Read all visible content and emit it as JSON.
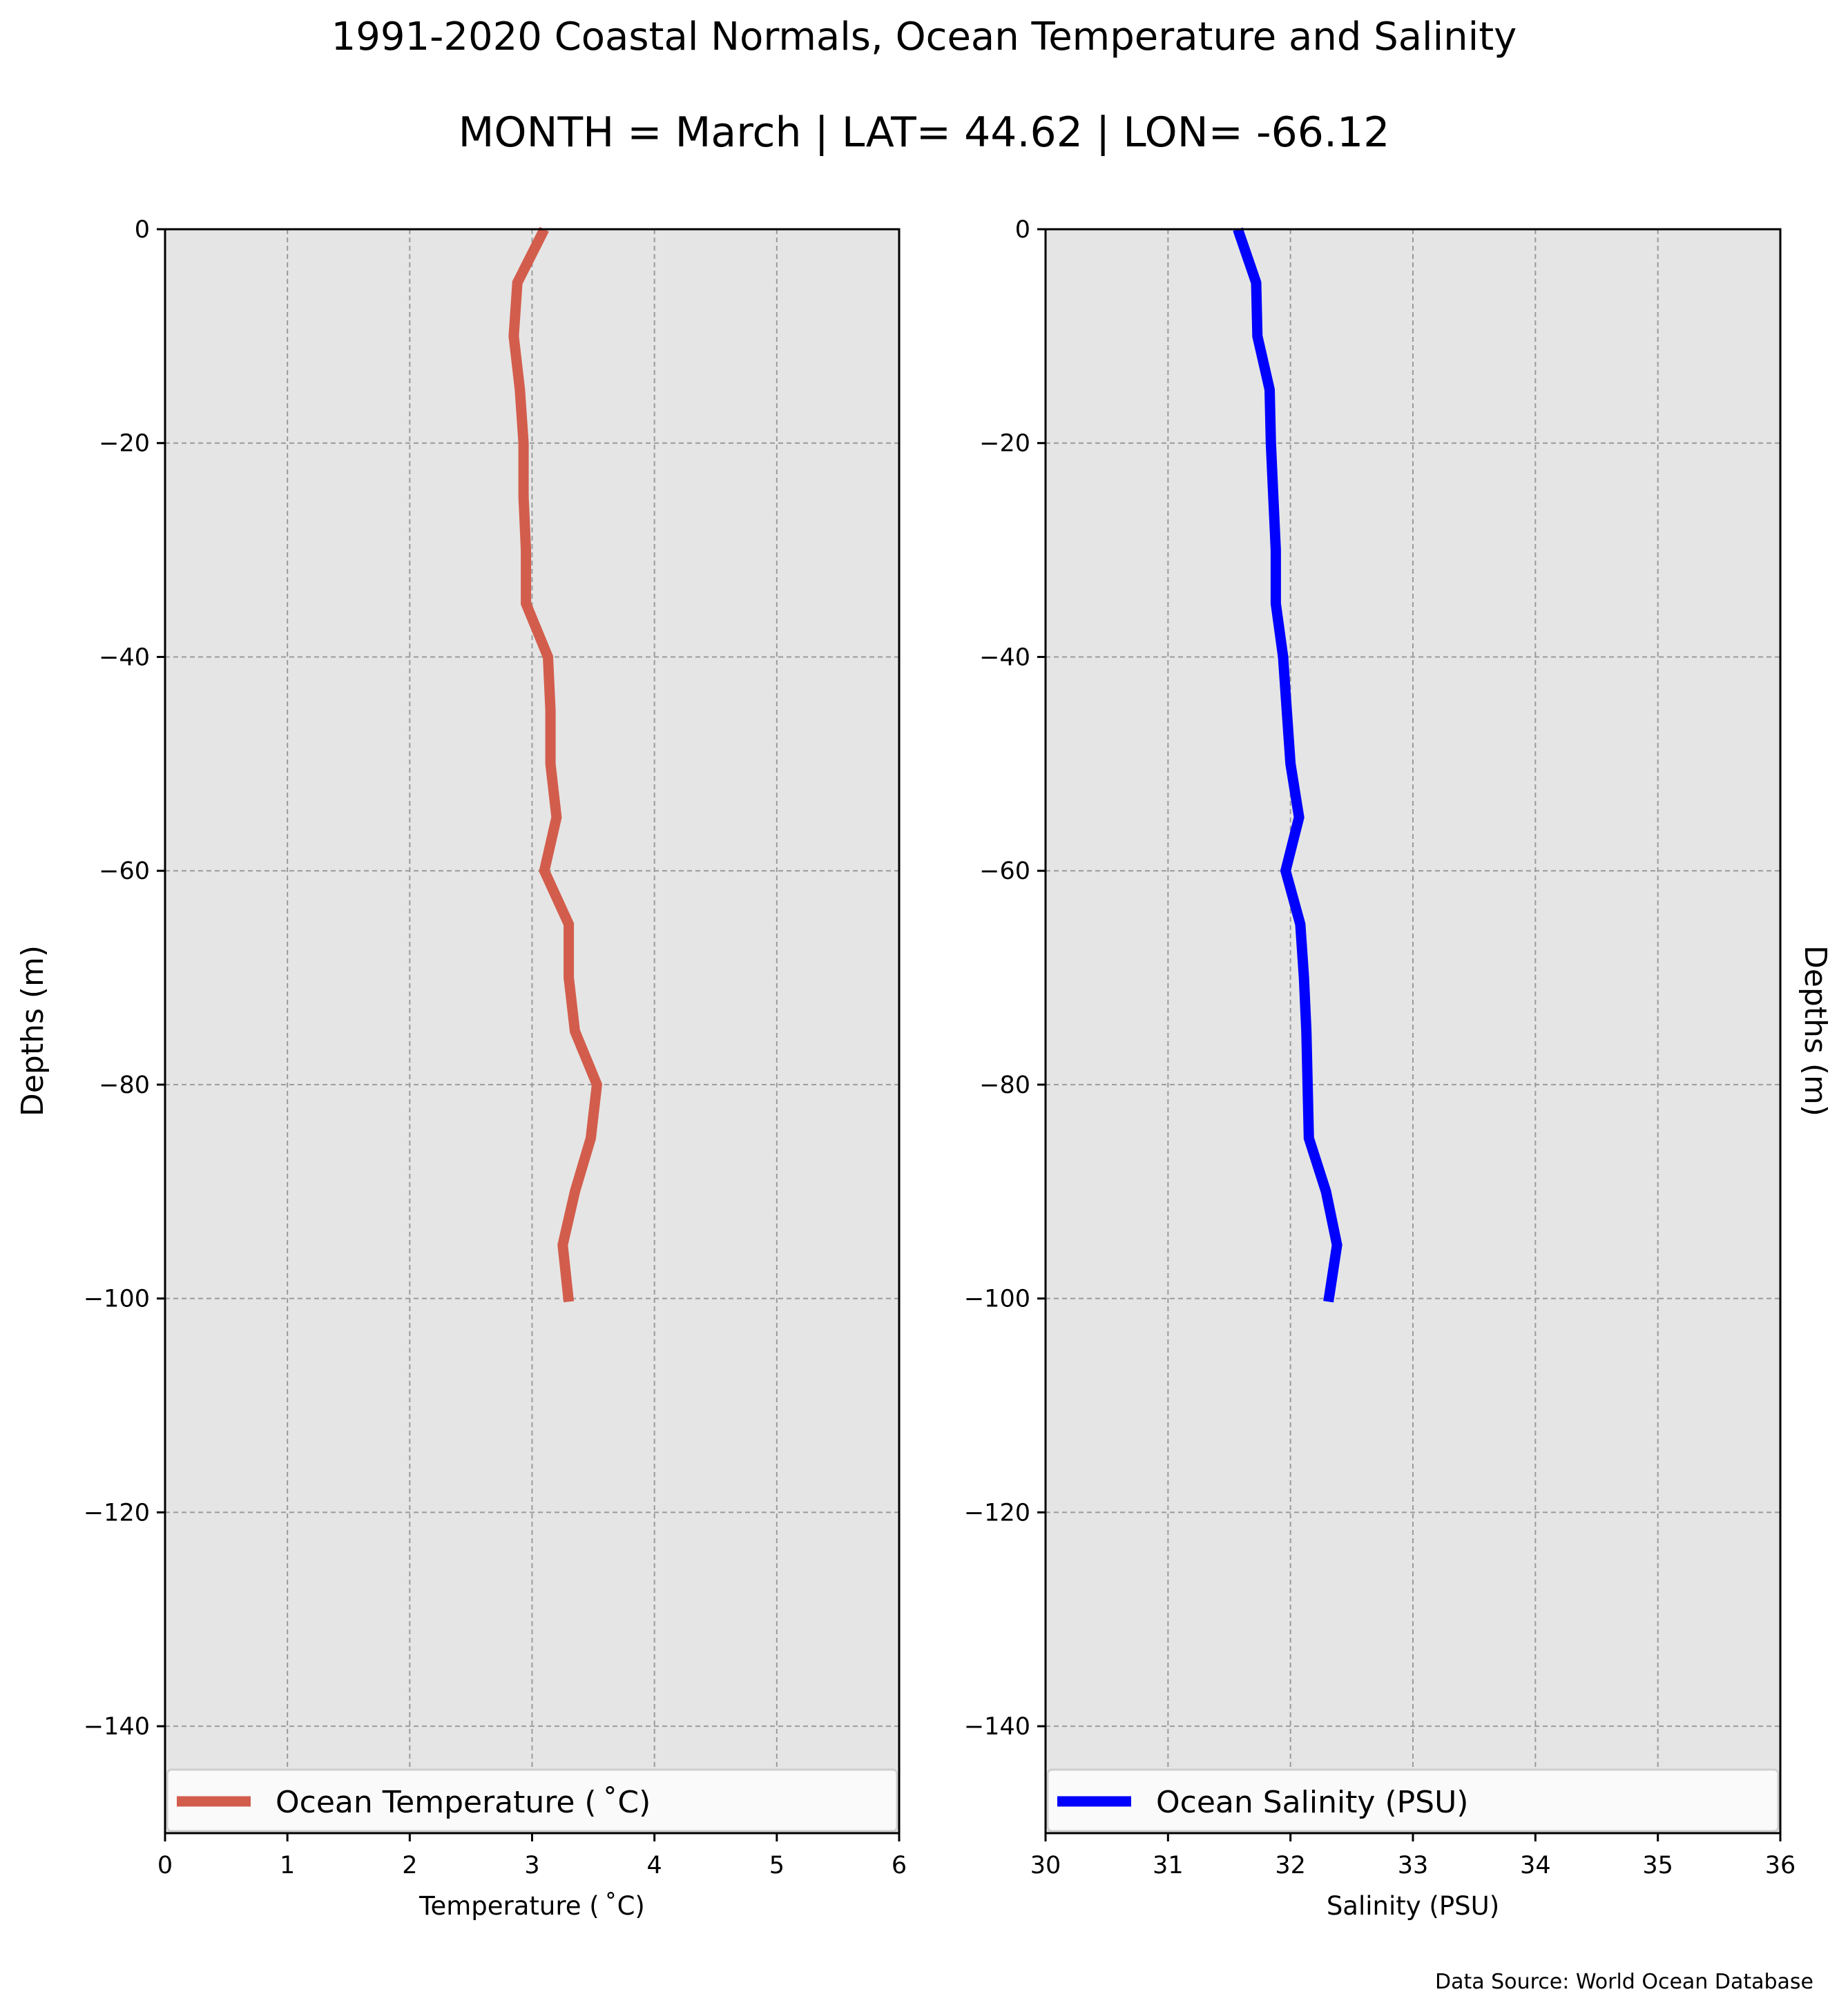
{
  "title": "1991-2020 Coastal Normals, Ocean Temperature and Salinity",
  "subtitle": "MONTH = March | LAT= 44.62 | LON= -66.12",
  "footer": "Data Source: World Ocean Database",
  "chart_data": [
    {
      "type": "line",
      "orientation": "vertical-profile",
      "xlabel": "Temperature ($^\\circ$C)",
      "xlabel_display": "Temperature ( ˚C)",
      "ylabel": "Depths (m)",
      "ylabel_side": "left",
      "xlim": [
        0,
        6
      ],
      "ylim": [
        -150,
        0
      ],
      "xticks": [
        0,
        1,
        2,
        3,
        4,
        5,
        6
      ],
      "yticks": [
        0,
        -20,
        -40,
        -60,
        -80,
        -100,
        -120,
        -140
      ],
      "grid": true,
      "background": "#e5e5e5",
      "legend_position": "bottom",
      "series": [
        {
          "name": "Ocean Temperature ( ˚C)",
          "color": "#d35d4c",
          "x": [
            3.1,
            2.88,
            2.85,
            2.9,
            2.93,
            2.93,
            2.95,
            2.95,
            3.13,
            3.15,
            3.15,
            3.2,
            3.1,
            3.3,
            3.3,
            3.35,
            3.53,
            3.48,
            3.35,
            3.25,
            3.3
          ],
          "y": [
            0,
            -5,
            -10,
            -15,
            -20,
            -25,
            -30,
            -35,
            -40,
            -45,
            -50,
            -55,
            -60,
            -65,
            -70,
            -75,
            -80,
            -85,
            -90,
            -95,
            -100.3
          ]
        }
      ]
    },
    {
      "type": "line",
      "orientation": "vertical-profile",
      "xlabel": "Salinity (PSU)",
      "ylabel": "Depths (m)",
      "ylabel_side": "right",
      "xlim": [
        30,
        36
      ],
      "ylim": [
        -150,
        0
      ],
      "xticks": [
        30,
        31,
        32,
        33,
        34,
        35,
        36
      ],
      "yticks": [
        0,
        -20,
        -40,
        -60,
        -80,
        -100,
        -120,
        -140
      ],
      "grid": true,
      "background": "#e5e5e5",
      "legend_position": "bottom",
      "series": [
        {
          "name": "Ocean Salinity (PSU)",
          "color": "#0000ff",
          "x": [
            31.57,
            31.72,
            31.73,
            31.83,
            31.84,
            31.86,
            31.88,
            31.88,
            31.94,
            31.97,
            32.0,
            32.07,
            31.96,
            32.08,
            32.11,
            32.13,
            32.14,
            32.15,
            32.29,
            32.38,
            32.31
          ],
          "y": [
            0,
            -5,
            -10,
            -15,
            -20,
            -25,
            -30,
            -35,
            -40,
            -45,
            -50,
            -55,
            -60,
            -65,
            -70,
            -75,
            -80,
            -85,
            -90,
            -95,
            -100.3
          ]
        }
      ]
    }
  ]
}
